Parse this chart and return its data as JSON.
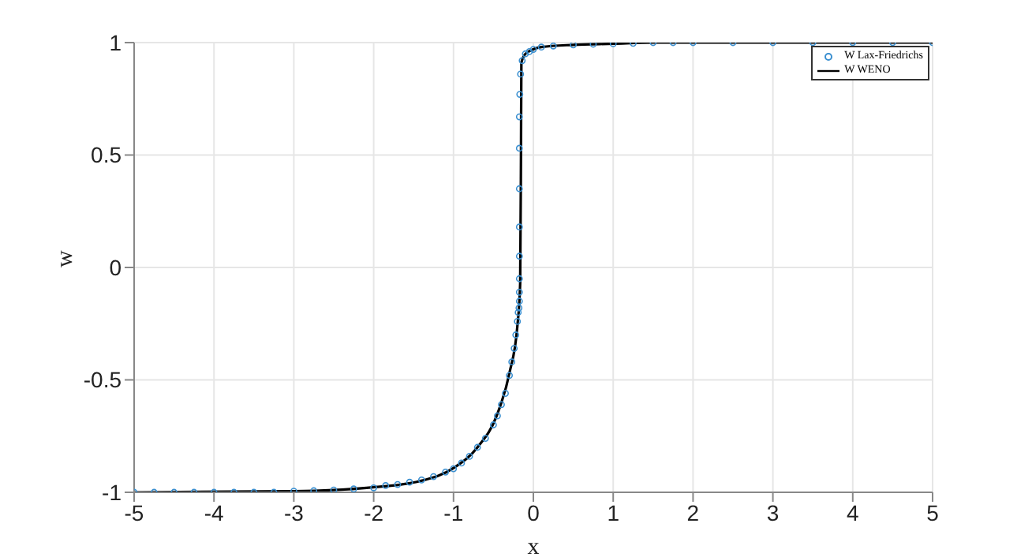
{
  "chart_data": {
    "type": "line",
    "xlabel": "x",
    "ylabel": "w",
    "xlim": [
      -5,
      5
    ],
    "ylim": [
      -1,
      1
    ],
    "xticks": [
      -5,
      -4,
      -3,
      -2,
      -1,
      0,
      1,
      2,
      3,
      4,
      5
    ],
    "yticks": [
      -1,
      -0.5,
      0,
      0.5,
      1
    ],
    "grid": true,
    "legend": "top right",
    "series": [
      {
        "name": "W Lax-Friedrichs",
        "type": "scatter",
        "marker": "circle",
        "color": "#3a8fd0",
        "x": [
          -5,
          -4.75,
          -4.5,
          -4.25,
          -4,
          -3.75,
          -3.5,
          -3.25,
          -3,
          -2.75,
          -2.5,
          -2.25,
          -2,
          -1.85,
          -1.7,
          -1.55,
          -1.4,
          -1.25,
          -1.1,
          -1,
          -0.9,
          -0.8,
          -0.7,
          -0.6,
          -0.5,
          -0.45,
          -0.4,
          -0.35,
          -0.3,
          -0.27,
          -0.24,
          -0.22,
          -0.2,
          -0.19,
          -0.18,
          -0.175,
          -0.175,
          -0.175,
          -0.175,
          -0.175,
          -0.175,
          -0.175,
          -0.175,
          -0.17,
          -0.16,
          -0.14,
          -0.1,
          -0.05,
          0,
          0.1,
          0.25,
          0.5,
          0.75,
          1,
          1.25,
          1.5,
          1.75,
          2,
          2.5,
          3,
          3.5,
          4,
          4.5,
          5
        ],
        "values": [
          -1,
          -1,
          -1,
          -1,
          -1,
          -1,
          -1,
          -1,
          -0.995,
          -0.993,
          -0.99,
          -0.985,
          -0.98,
          -0.97,
          -0.965,
          -0.955,
          -0.945,
          -0.93,
          -0.91,
          -0.895,
          -0.87,
          -0.84,
          -0.8,
          -0.76,
          -0.7,
          -0.66,
          -0.61,
          -0.56,
          -0.48,
          -0.42,
          -0.36,
          -0.3,
          -0.24,
          -0.2,
          -0.18,
          -0.15,
          -0.11,
          -0.05,
          0.05,
          0.18,
          0.35,
          0.53,
          0.67,
          0.77,
          0.86,
          0.92,
          0.95,
          0.96,
          0.97,
          0.98,
          0.985,
          0.99,
          0.993,
          0.995,
          0.997,
          1,
          1,
          1,
          1,
          1,
          1,
          1,
          1,
          1
        ]
      },
      {
        "name": "W WENO",
        "marker": "none",
        "color": "#000000",
        "x": [
          -5,
          -3,
          -2.09,
          -1.42,
          -0.99,
          -0.7,
          -0.46,
          -0.3,
          -0.2,
          -0.165,
          -0.155,
          -0.15,
          -0.1,
          0,
          0.1,
          0.5,
          1,
          1.5,
          5
        ],
        "values": [
          -1,
          -0.995,
          -0.98,
          -0.95,
          -0.89,
          -0.8,
          -0.66,
          -0.47,
          -0.26,
          -0.07,
          0.5,
          0.91,
          0.95,
          0.97,
          0.98,
          0.99,
          0.995,
          1,
          1
        ]
      }
    ]
  }
}
